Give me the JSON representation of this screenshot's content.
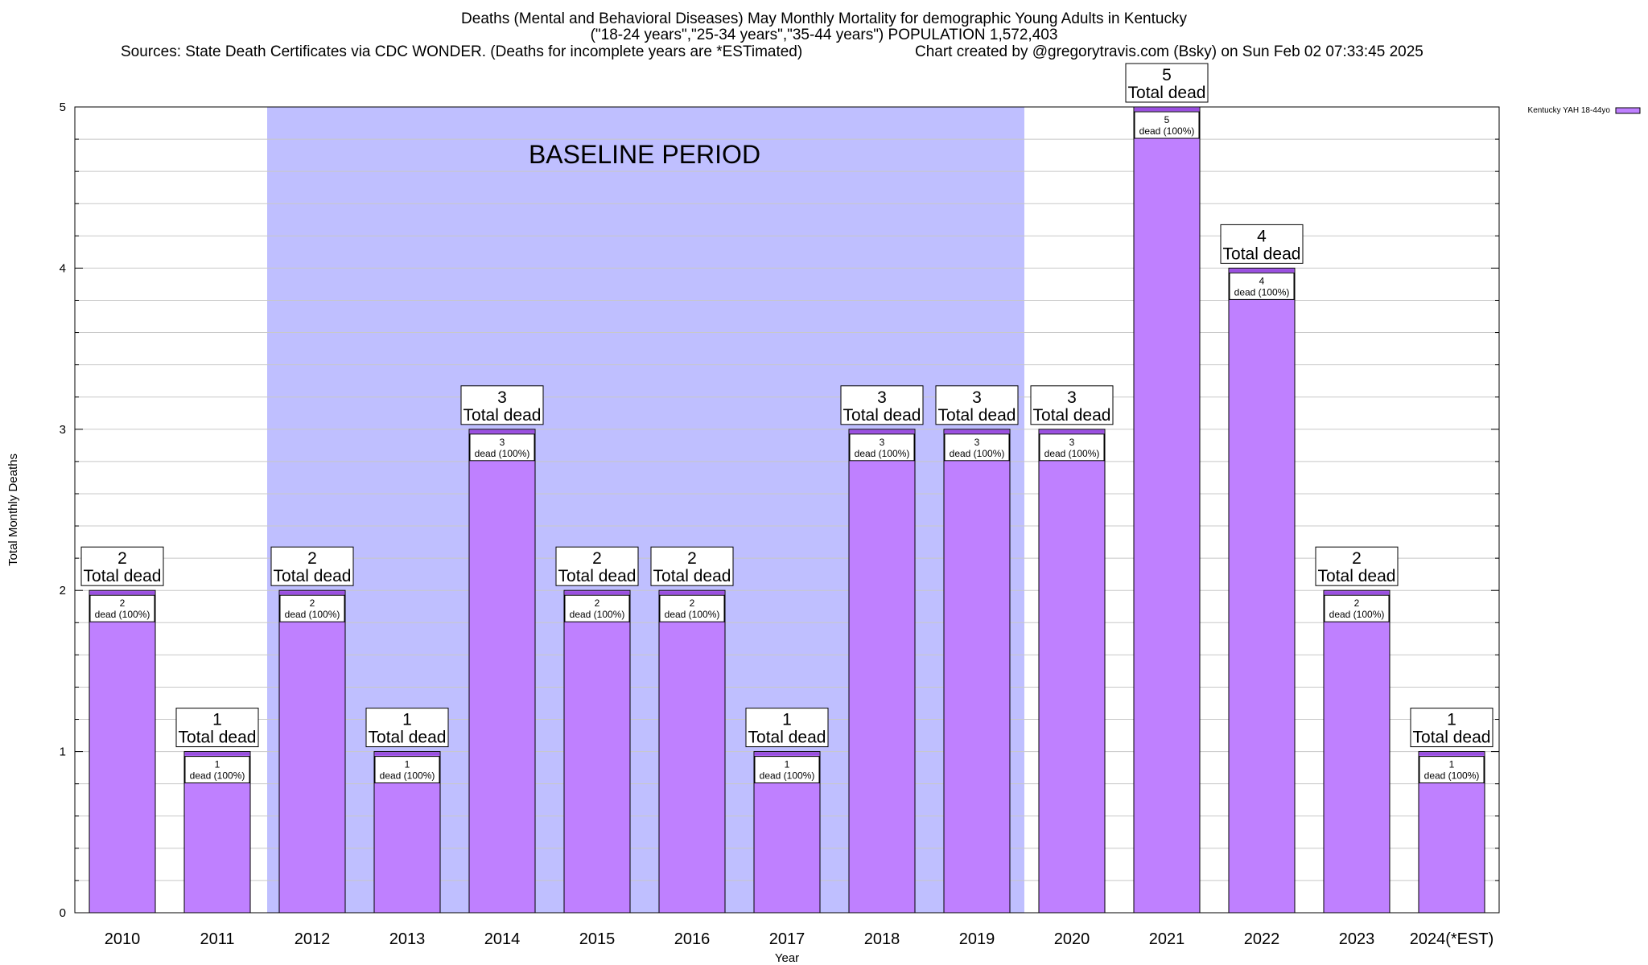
{
  "title": {
    "line1": "Deaths (Mental and Behavioral Diseases) May Monthly Mortality for demographic Young Adults in Kentucky",
    "line2": "(\"18-24 years\",\"25-34 years\",\"35-44 years\") POPULATION 1,572,403",
    "sources": "Sources: State Death Certificates via CDC WONDER. (Deaths for incomplete years are *ESTimated)",
    "credit": "Chart created by @gregorytravis.com (Bsky) on Sun Feb 02 07:33:45 2025"
  },
  "chart_data": {
    "type": "bar",
    "categories": [
      "2010",
      "2011",
      "2012",
      "2013",
      "2014",
      "2015",
      "2016",
      "2017",
      "2018",
      "2019",
      "2020",
      "2021",
      "2022",
      "2023",
      "2024(*EST)"
    ],
    "series": [
      {
        "name": "Kentucky YAH 18-44yo",
        "values": [
          2,
          1,
          2,
          1,
          3,
          2,
          2,
          1,
          3,
          3,
          3,
          5,
          4,
          2,
          1
        ]
      }
    ],
    "total_labels": [
      "2",
      "1",
      "2",
      "1",
      "3",
      "2",
      "2",
      "1",
      "3",
      "3",
      "3",
      "5",
      "4",
      "2",
      "1"
    ],
    "total_suffix": "Total dead",
    "inner_suffix": "dead (100%)",
    "xlabel": "Year",
    "ylabel": "Total Monthly Deaths",
    "ylim": [
      0,
      5
    ],
    "yticks": [
      0,
      1,
      2,
      3,
      4,
      5
    ],
    "grid": true,
    "legend_position": "top-right",
    "baseline": {
      "label": "BASELINE PERIOD",
      "from": "2012",
      "to": "2019"
    },
    "colors": {
      "bar_fill": "#bf80ff",
      "bar_cap": "#9a4fe0",
      "baseline_fill": "#bfbfff",
      "grid": "#c8c8c8",
      "axis": "#000000"
    }
  }
}
